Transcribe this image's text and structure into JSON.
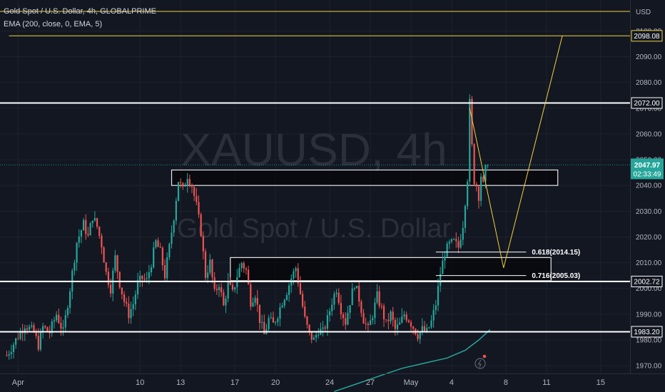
{
  "header": {
    "symbol_line": "Gold Spot / U.S. Dollar, 4h, GLOBALPRIME",
    "indicator_line": "EMA (200, close, 0, EMA, 5)"
  },
  "watermark": {
    "ticker": "XAUUSD, 4h",
    "description": "Gold Spot / U.S. Dollar"
  },
  "price_scale": {
    "currency": "USD",
    "current_price": "2047.97",
    "countdown": "02:33:49"
  },
  "colors": {
    "background": "#131722",
    "up": "#26a69a",
    "down": "#ef5350",
    "ema": "#26a69a",
    "level_line": "#ffffff",
    "target_line": "#f2d13d",
    "text": "#b2b5be"
  },
  "chart_data": {
    "type": "candlestick",
    "y_axis": {
      "ylim": [
        1967,
        2112
      ],
      "ticks": [
        1970,
        1980,
        1990,
        2000,
        2010,
        2020,
        2030,
        2040,
        2050,
        2060,
        2070,
        2080,
        2090,
        2100
      ],
      "tick_labels": [
        "1970.00",
        "1980.00",
        "1990.00",
        "2000.00",
        "2010.00",
        "2020.00",
        "2030.00",
        "2040.00",
        "2050.00",
        "2060.00",
        "2070.00",
        "2080.00",
        "2090.00",
        "2100.00"
      ]
    },
    "x_axis": {
      "unit": "4h bars (6 per day)",
      "labels": [
        {
          "text": "Apr",
          "bar": 5
        },
        {
          "text": "10",
          "bar": 59
        },
        {
          "text": "13",
          "bar": 77
        },
        {
          "text": "17",
          "bar": 101
        },
        {
          "text": "20",
          "bar": 119
        },
        {
          "text": "24",
          "bar": 143
        },
        {
          "text": "27",
          "bar": 161
        },
        {
          "text": "May",
          "bar": 179
        },
        {
          "text": "4",
          "bar": 197
        },
        {
          "text": "8",
          "bar": 221
        },
        {
          "text": "11",
          "bar": 239
        },
        {
          "text": "15",
          "bar": 263
        }
      ],
      "bar_range": [
        -3,
        276
      ]
    },
    "price_path": [
      [
        0,
        1974
      ],
      [
        4,
        1980
      ],
      [
        8,
        1986
      ],
      [
        12,
        1983
      ],
      [
        14,
        1978
      ],
      [
        16,
        1985
      ],
      [
        19,
        1983
      ],
      [
        22,
        1990
      ],
      [
        25,
        1983
      ],
      [
        28,
        2000
      ],
      [
        31,
        2018
      ],
      [
        34,
        2025
      ],
      [
        36,
        2020
      ],
      [
        38,
        2028
      ],
      [
        40,
        2024
      ],
      [
        42,
        2017
      ],
      [
        44,
        2006
      ],
      [
        46,
        2000
      ],
      [
        48,
        2012
      ],
      [
        50,
        2002
      ],
      [
        52,
        1995
      ],
      [
        54,
        1990
      ],
      [
        56,
        1994
      ],
      [
        58,
        2002
      ],
      [
        60,
        2004
      ],
      [
        62,
        2003
      ],
      [
        64,
        2010
      ],
      [
        66,
        2018
      ],
      [
        68,
        2014
      ],
      [
        70,
        2005
      ],
      [
        72,
        2016
      ],
      [
        74,
        2028
      ],
      [
        76,
        2042
      ],
      [
        78,
        2038
      ],
      [
        80,
        2044
      ],
      [
        82,
        2040
      ],
      [
        84,
        2032
      ],
      [
        86,
        2022
      ],
      [
        88,
        2005
      ],
      [
        90,
        2010
      ],
      [
        92,
        1998
      ],
      [
        94,
        2002
      ],
      [
        96,
        1993
      ],
      [
        98,
        2002
      ],
      [
        100,
        1998
      ],
      [
        102,
        2005
      ],
      [
        104,
        2010
      ],
      [
        106,
        2007
      ],
      [
        108,
        1995
      ],
      [
        110,
        1998
      ],
      [
        112,
        1988
      ],
      [
        114,
        1982
      ],
      [
        116,
        1988
      ],
      [
        118,
        1986
      ],
      [
        120,
        1990
      ],
      [
        122,
        1995
      ],
      [
        124,
        1999
      ],
      [
        126,
        2004
      ],
      [
        128,
        2008
      ],
      [
        130,
        1998
      ],
      [
        132,
        1988
      ],
      [
        134,
        1982
      ],
      [
        136,
        1980
      ],
      [
        138,
        1984
      ],
      [
        140,
        1983
      ],
      [
        142,
        1988
      ],
      [
        144,
        1995
      ],
      [
        146,
        2000
      ],
      [
        148,
        1992
      ],
      [
        150,
        1987
      ],
      [
        152,
        1995
      ],
      [
        154,
        2002
      ],
      [
        156,
        1996
      ],
      [
        158,
        1988
      ],
      [
        160,
        1984
      ],
      [
        162,
        1990
      ],
      [
        164,
        1997
      ],
      [
        166,
        1992
      ],
      [
        168,
        1986
      ],
      [
        170,
        1990
      ],
      [
        172,
        1984
      ],
      [
        174,
        1986
      ],
      [
        176,
        1990
      ],
      [
        178,
        1988
      ],
      [
        180,
        1985
      ],
      [
        182,
        1982
      ],
      [
        184,
        1984
      ],
      [
        186,
        1983
      ],
      [
        188,
        1987
      ],
      [
        190,
        1994
      ],
      [
        192,
        2006
      ],
      [
        194,
        2014
      ],
      [
        196,
        2017
      ],
      [
        198,
        2018
      ],
      [
        200,
        2016
      ],
      [
        202,
        2025
      ],
      [
        204,
        2043
      ],
      [
        205,
        2072
      ],
      [
        206,
        2055
      ],
      [
        207,
        2042
      ],
      [
        208,
        2040
      ],
      [
        209,
        2036
      ],
      [
        210,
        2044
      ],
      [
        211,
        2040
      ],
      [
        212,
        2046
      ],
      [
        213,
        2047.97
      ]
    ],
    "ema_200": [
      [
        145,
        1960
      ],
      [
        155,
        1963
      ],
      [
        165,
        1966
      ],
      [
        175,
        1969
      ],
      [
        185,
        1971
      ],
      [
        195,
        1973
      ],
      [
        203,
        1976
      ],
      [
        209,
        1980
      ],
      [
        214,
        1984
      ]
    ],
    "horizontal_levels": [
      {
        "price": 2072.0,
        "label": "2072.00",
        "color": "#ffffff"
      },
      {
        "price": 2002.72,
        "label": "2002.72",
        "color": "#ffffff"
      },
      {
        "price": 1983.2,
        "label": "1983.20",
        "color": "#ffffff"
      },
      {
        "price": 2098.08,
        "label": "2098.08",
        "color": "#f2d13d",
        "from_bar": 1
      }
    ],
    "zones": [
      {
        "bar_from": 73,
        "bar_to": 244,
        "low": 2040,
        "high": 2046
      },
      {
        "bar_from": 99,
        "bar_to": 241,
        "low": 2003,
        "high": 2012
      }
    ],
    "fib_levels": [
      {
        "price": 2014.15,
        "label": "0.618(2014.15)",
        "bar_from": 190,
        "bar_to": 230
      },
      {
        "price": 2005.03,
        "label": "0.716(2005.03)",
        "bar_from": 190,
        "bar_to": 230
      }
    ],
    "projection_path": [
      [
        205,
        2070
      ],
      [
        220,
        2008
      ],
      [
        246,
        2098.08
      ]
    ]
  }
}
